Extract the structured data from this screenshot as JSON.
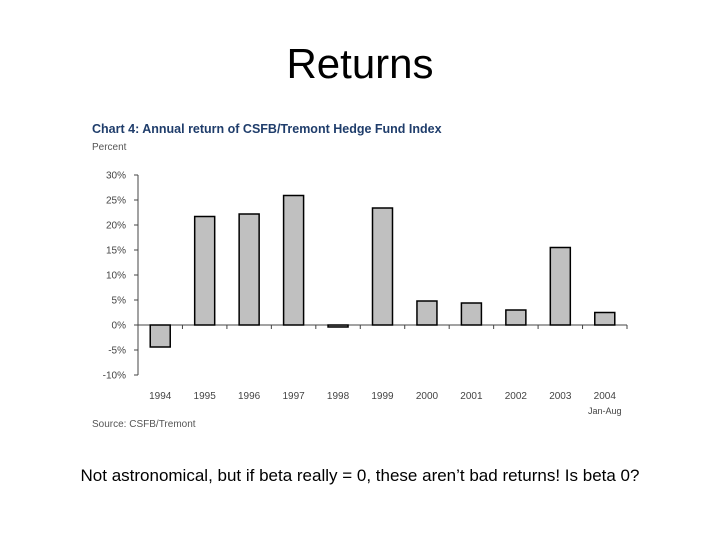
{
  "slide": {
    "title": "Returns",
    "caption": "Not astronomical, but if beta really = 0, these aren’t bad returns! Is beta 0?"
  },
  "chart_data": {
    "type": "bar",
    "title": "Chart 4:  Annual return of CSFB/Tremont Hedge Fund Index",
    "unit_label": "Percent",
    "source": "Source: CSFB/Tremont",
    "categories": [
      "1994",
      "1995",
      "1996",
      "1997",
      "1998",
      "1999",
      "2000",
      "2001",
      "2002",
      "2003",
      "2004"
    ],
    "category_sublabels": {
      "2004": "Jan-Aug"
    },
    "values": [
      -4.4,
      21.7,
      22.2,
      25.9,
      -0.4,
      23.4,
      4.8,
      4.4,
      3.0,
      15.5,
      2.5
    ],
    "ylim": [
      -10,
      30
    ],
    "yticks": [
      -10,
      -5,
      0,
      5,
      10,
      15,
      20,
      25,
      30
    ],
    "ytick_labels": [
      "-10%",
      "-5%",
      "0%",
      "5%",
      "10%",
      "15%",
      "20%",
      "25%",
      "30%"
    ],
    "bar_color": "#c0c0c0",
    "grid": false
  }
}
